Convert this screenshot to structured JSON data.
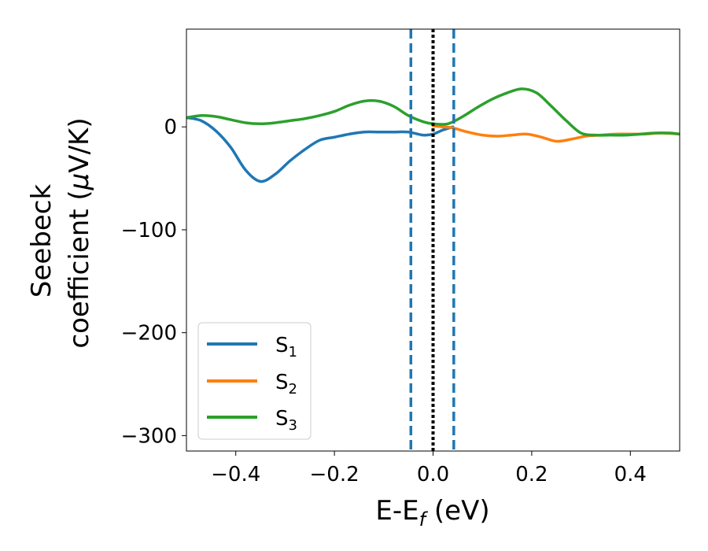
{
  "chart_data": {
    "type": "line",
    "xlabel": {
      "main": "E-E",
      "sub": "f",
      "tail": " (eV)"
    },
    "ylabel": {
      "line1": "Seebeck",
      "line2": "coefficient  (",
      "mu": "μ",
      "line2_tail": "V/K)"
    },
    "xlim": [
      -0.5,
      0.5
    ],
    "ylim": [
      -315,
      95
    ],
    "x_ticks": [
      -0.4,
      -0.2,
      0.0,
      0.2,
      0.4
    ],
    "x_tick_labels": [
      "−0.4",
      "−0.2",
      "0.0",
      "0.2",
      "0.4"
    ],
    "y_ticks": [
      0,
      -100,
      -200,
      -300
    ],
    "y_tick_labels": [
      "0",
      "−100",
      "−200",
      "−300"
    ],
    "grid": false,
    "legend_position": "lower-left",
    "series": [
      {
        "name": "S",
        "sub": "1",
        "color": "#1f77b4",
        "x": [
          -0.5,
          -0.47,
          -0.44,
          -0.41,
          -0.38,
          -0.35,
          -0.32,
          -0.29,
          -0.26,
          -0.23,
          -0.2,
          -0.17,
          -0.14,
          -0.11,
          -0.08,
          -0.05,
          -0.02,
          0.0,
          0.02,
          0.04
        ],
        "y": [
          9,
          6,
          -4,
          -20,
          -42,
          -53,
          -46,
          -33,
          -22,
          -13,
          -10,
          -7,
          -5,
          -5,
          -5,
          -5,
          -8,
          -7,
          -3,
          0
        ]
      },
      {
        "name": "S",
        "sub": "2",
        "color": "#ff7f0e",
        "x": [
          0.0,
          0.02,
          0.04,
          0.07,
          0.1,
          0.13,
          0.16,
          0.19,
          0.22,
          0.25,
          0.28,
          0.31,
          0.34,
          0.37,
          0.4,
          0.43,
          0.46,
          0.5
        ],
        "y": [
          1,
          0,
          -1,
          -5,
          -8,
          -9,
          -8,
          -7,
          -10,
          -14,
          -12,
          -9,
          -8,
          -7,
          -7,
          -7,
          -6,
          -7
        ]
      },
      {
        "name": "S",
        "sub": "3",
        "color": "#2ca02c",
        "x": [
          -0.5,
          -0.47,
          -0.44,
          -0.41,
          -0.38,
          -0.35,
          -0.32,
          -0.29,
          -0.26,
          -0.23,
          -0.2,
          -0.17,
          -0.14,
          -0.11,
          -0.08,
          -0.05,
          -0.02,
          0.0,
          0.03,
          0.06,
          0.09,
          0.12,
          0.15,
          0.18,
          0.21,
          0.24,
          0.27,
          0.3,
          0.33,
          0.36,
          0.39,
          0.42,
          0.45,
          0.48,
          0.5
        ],
        "y": [
          9,
          11,
          10,
          7,
          4,
          3,
          4,
          6,
          8,
          11,
          15,
          21,
          25,
          25,
          20,
          11,
          5,
          3,
          3,
          10,
          19,
          27,
          33,
          37,
          33,
          20,
          6,
          -6,
          -8,
          -8,
          -8,
          -7,
          -6,
          -6,
          -7
        ]
      }
    ],
    "vlines": [
      {
        "x": 0.0,
        "style": "dotted",
        "color": "#000000"
      },
      {
        "x": -0.045,
        "style": "dashed",
        "color": "#1f77b4"
      },
      {
        "x": 0.042,
        "style": "dashed",
        "color": "#1f77b4"
      }
    ]
  }
}
